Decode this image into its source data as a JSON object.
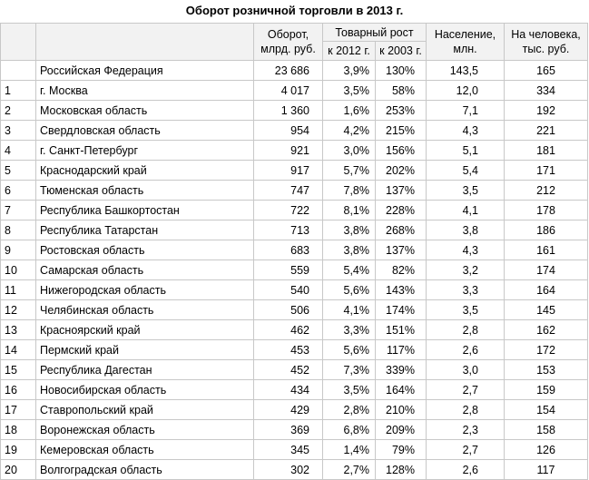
{
  "title": "Оборот розничной торговли в 2013 г.",
  "header": {
    "turnover": [
      "Оборот,",
      "млрд. руб."
    ],
    "growth": "Товарный рост",
    "growth_2012": "к 2012 г.",
    "growth_2003": "к 2003 г.",
    "population": [
      "Население,",
      "млн."
    ],
    "per_capita": [
      "На человека,",
      "тыс. руб."
    ]
  },
  "table": {
    "rows": [
      [
        null,
        "Российская Федерация",
        "23 686",
        "3,9%",
        "130%",
        "143,5",
        "165"
      ],
      [
        "1",
        "г. Москва",
        "4 017",
        "3,5%",
        "58%",
        "12,0",
        "334"
      ],
      [
        "2",
        "Московская область",
        "1 360",
        "1,6%",
        "253%",
        "7,1",
        "192"
      ],
      [
        "3",
        "Свердловская область",
        "954",
        "4,2%",
        "215%",
        "4,3",
        "221"
      ],
      [
        "4",
        "г. Санкт-Петербург",
        "921",
        "3,0%",
        "156%",
        "5,1",
        "181"
      ],
      [
        "5",
        "Краснодарский край",
        "917",
        "5,7%",
        "202%",
        "5,4",
        "171"
      ],
      [
        "6",
        "Тюменская область",
        "747",
        "7,8%",
        "137%",
        "3,5",
        "212"
      ],
      [
        "7",
        "Республика Башкортостан",
        "722",
        "8,1%",
        "228%",
        "4,1",
        "178"
      ],
      [
        "8",
        "Республика Татарстан",
        "713",
        "3,8%",
        "268%",
        "3,8",
        "186"
      ],
      [
        "9",
        "Ростовская область",
        "683",
        "3,8%",
        "137%",
        "4,3",
        "161"
      ],
      [
        "10",
        "Самарская область",
        "559",
        "5,4%",
        "82%",
        "3,2",
        "174"
      ],
      [
        "11",
        "Нижегородская область",
        "540",
        "5,6%",
        "143%",
        "3,3",
        "164"
      ],
      [
        "12",
        "Челябинская область",
        "506",
        "4,1%",
        "174%",
        "3,5",
        "145"
      ],
      [
        "13",
        "Красноярский край",
        "462",
        "3,3%",
        "151%",
        "2,8",
        "162"
      ],
      [
        "14",
        "Пермский край",
        "453",
        "5,6%",
        "117%",
        "2,6",
        "172"
      ],
      [
        "15",
        "Республика Дагестан",
        "452",
        "7,3%",
        "339%",
        "3,0",
        "153"
      ],
      [
        "16",
        "Новосибирская область",
        "434",
        "3,5%",
        "164%",
        "2,7",
        "159"
      ],
      [
        "17",
        "Ставропольский край",
        "429",
        "2,8%",
        "210%",
        "2,8",
        "154"
      ],
      [
        "18",
        "Воронежская область",
        "369",
        "6,8%",
        "209%",
        "2,3",
        "158"
      ],
      [
        "19",
        "Кемеровская область",
        "345",
        "1,4%",
        "79%",
        "2,7",
        "126"
      ],
      [
        "20",
        "Волгоградская область",
        "302",
        "2,7%",
        "128%",
        "2,6",
        "117"
      ]
    ]
  }
}
